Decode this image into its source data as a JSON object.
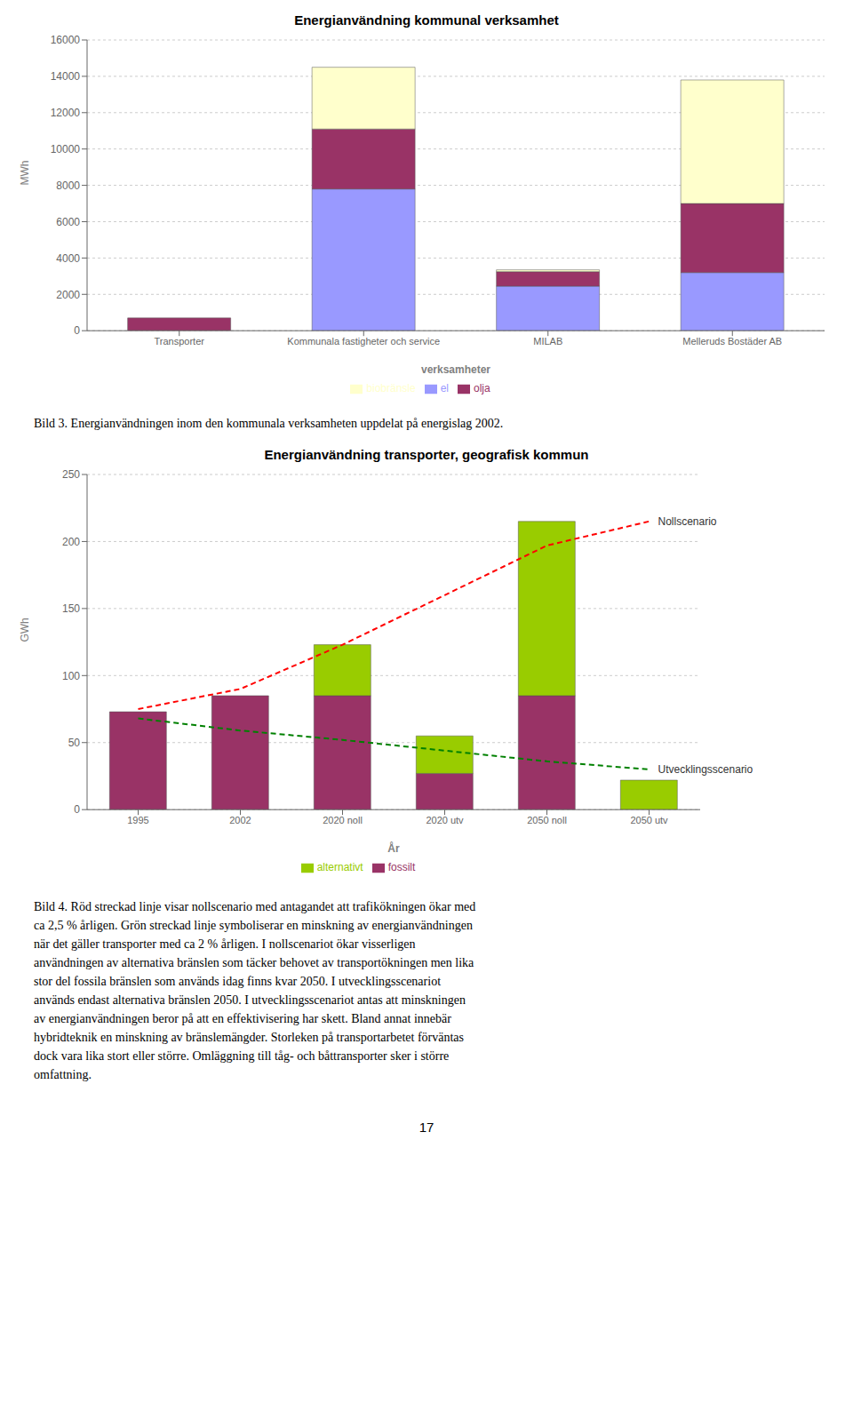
{
  "chart_data": [
    {
      "type": "bar",
      "title": "Energianvändning kommunal verksamhet",
      "categories": [
        "Transporter",
        "Kommunala fastigheter och service",
        "MILAB",
        "Melleruds Bostäder AB"
      ],
      "xlabel": "verksamheter",
      "ylabel": "MWh",
      "series": [
        {
          "name": "el",
          "color": "#9999FF",
          "values": [
            0,
            7800,
            2450,
            3200
          ]
        },
        {
          "name": "olja",
          "color": "#993366",
          "values": [
            700,
            3300,
            800,
            3800
          ]
        },
        {
          "name": "biobränsle",
          "color": "#FFFFCC",
          "values": [
            0,
            3400,
            100,
            6800
          ]
        }
      ],
      "stacked": true,
      "ylim": [
        0,
        16000
      ],
      "yticks": [
        0,
        2000,
        4000,
        6000,
        8000,
        10000,
        12000,
        14000,
        16000
      ],
      "grid": true,
      "legend": "bottom",
      "annotations": [
        "Bild 3. Energianvändningen inom den kommunala verksamheten uppdelat på energislag 2002."
      ]
    },
    {
      "type": "bar",
      "title": "Energianvändning transporter, geografisk kommun",
      "categories": [
        "1995",
        "2002",
        "2020 noll",
        "2020 utv",
        "2050 noll",
        "2050 utv"
      ],
      "xlabel": "År",
      "ylabel": "GWh",
      "series": [
        {
          "name": "fossilt",
          "color": "#993366",
          "type": "bar",
          "values": [
            73,
            85,
            85,
            27,
            85,
            0
          ]
        },
        {
          "name": "alternativt",
          "color": "#99CC00",
          "type": "bar",
          "values": [
            0,
            0,
            38,
            28,
            130,
            22
          ]
        },
        {
          "name": "Nollscenario",
          "color": "red",
          "type": "line",
          "line_style": "dashed",
          "values": [
            75,
            90,
            123,
            160,
            197,
            215
          ]
        },
        {
          "name": "Utvecklingsscenario",
          "color": "green",
          "type": "line",
          "line_style": "dashed",
          "values": [
            68,
            59,
            52,
            44,
            36,
            30
          ]
        }
      ],
      "stacked": true,
      "ylim": [
        0,
        250
      ],
      "yticks": [
        0,
        50,
        100,
        150,
        200,
        250
      ],
      "grid": true,
      "legend": "bottom",
      "annotations": [
        "Bild 4. Röd streckad linje visar nollscenario med antagandet att trafikökningen ökar med",
        "ca 2,5 % årligen. Grön streckad linje symboliserar en minskning av energianvändningen",
        "när det gäller transporter med ca 2 % årligen. I nollscenariot ökar visserligen",
        "användningen av alternativa bränslen som täcker behovet av transportökningen men lika",
        "stor del fossila bränslen som används idag finns kvar 2050. I utvecklingsscenariot",
        "används endast alternativa bränslen 2050. I utvecklingsscenariot antas att minskningen",
        "av energianvändningen beror på att en effektivisering har skett. Bland annat innebär",
        "hybridteknik en minskning av bränslemängder. Storleken på transportarbetet förväntas",
        "dock vara lika stort eller större. Omläggning till tåg- och båttransporter sker i större",
        "omfattning."
      ]
    }
  ],
  "annotations": [
    "17"
  ]
}
